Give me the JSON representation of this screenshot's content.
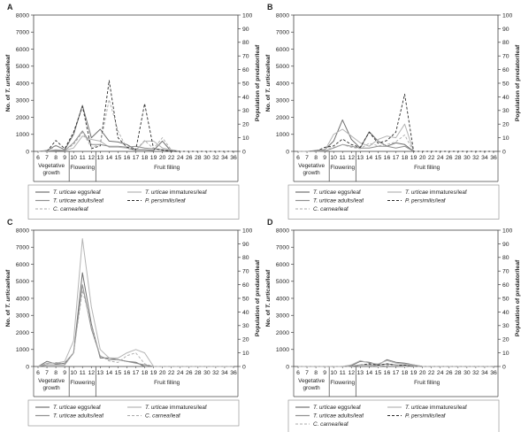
{
  "figure": {
    "left_axis_label_prefix": "No. of ",
    "left_axis_label_species": "T. urticae",
    "left_axis_label_suffix": "/leaf",
    "right_axis_label": "Population of predator/leaf",
    "stages": [
      "Vegetative growth",
      "Flowering",
      "Fruit filling"
    ],
    "stage_tick_groups": [
      [
        6,
        7,
        8,
        9
      ],
      [
        10,
        11,
        12
      ],
      [
        13,
        14,
        15,
        16,
        17,
        18,
        19,
        20,
        22,
        24,
        26,
        28,
        30,
        32,
        34,
        36
      ]
    ]
  },
  "legend_meta": [
    {
      "key": "eggs",
      "species": "T. urticae",
      "suffix": " eggs/leaf",
      "color": "#707070",
      "dash": "",
      "width": 1.0
    },
    {
      "key": "immatures",
      "species": "T. urticae",
      "suffix": " immatures/leaf",
      "color": "#b4b4b4",
      "dash": "",
      "width": 1.0
    },
    {
      "key": "adults",
      "species": "T. urticae",
      "suffix": " adults/leaf",
      "color": "#909090",
      "dash": "",
      "width": 1.0
    },
    {
      "key": "persimilis",
      "species": "P. persimilis",
      "suffix": "/leaf",
      "color": "#2a2a2a",
      "dash": "3,2",
      "width": 0.9
    },
    {
      "key": "carnea",
      "species": "C. carnea",
      "suffix": "/leaf",
      "color": "#aaaaaa",
      "dash": "3,2",
      "width": 0.9
    }
  ],
  "chart_data": [
    {
      "panel": "A",
      "type": "line",
      "x": [
        "6",
        "7",
        "8",
        "9",
        "10",
        "11",
        "12",
        "13",
        "14",
        "15",
        "16",
        "17",
        "18",
        "19",
        "20",
        "22",
        "24",
        "26",
        "28",
        "30",
        "32",
        "34",
        "36"
      ],
      "y_left_lim": [
        0,
        8000
      ],
      "y_left_ticks": [
        0,
        1000,
        2000,
        3000,
        4000,
        5000,
        6000,
        7000,
        8000
      ],
      "y_right_lim": [
        0,
        100
      ],
      "y_right_ticks": [
        0,
        10,
        20,
        30,
        40,
        50,
        60,
        70,
        80,
        90,
        100
      ],
      "legend": [
        "eggs",
        "immatures",
        "adults",
        "persimilis",
        "carnea"
      ],
      "series": [
        {
          "key": "eggs",
          "axis": "left",
          "values": [
            0,
            50,
            350,
            100,
            1000,
            2700,
            800,
            1300,
            600,
            550,
            400,
            100,
            100,
            50,
            600,
            0,
            0,
            0,
            0,
            0,
            0,
            0,
            0
          ]
        },
        {
          "key": "immatures",
          "axis": "left",
          "values": [
            0,
            20,
            100,
            50,
            200,
            900,
            700,
            600,
            250,
            250,
            200,
            50,
            600,
            600,
            200,
            100,
            0,
            0,
            0,
            0,
            0,
            0,
            0
          ]
        },
        {
          "key": "adults",
          "axis": "left",
          "values": [
            0,
            20,
            50,
            50,
            500,
            1200,
            400,
            400,
            300,
            300,
            250,
            300,
            200,
            150,
            100,
            50,
            0,
            0,
            0,
            0,
            0,
            0,
            0
          ]
        },
        {
          "key": "persimilis",
          "axis": "right",
          "values": [
            0,
            0,
            8,
            2,
            14,
            33,
            2,
            4,
            52,
            10,
            3,
            1,
            35,
            2,
            1,
            0,
            0,
            0,
            0,
            0,
            0,
            0,
            0
          ]
        },
        {
          "key": "carnea",
          "axis": "right",
          "values": [
            0,
            0,
            4,
            1,
            5,
            14,
            3,
            5,
            38,
            15,
            2,
            1,
            8,
            2,
            10,
            1,
            0,
            0,
            0,
            0,
            0,
            0,
            0
          ]
        }
      ]
    },
    {
      "panel": "B",
      "type": "line",
      "x": [
        "6",
        "7",
        "8",
        "9",
        "10",
        "11",
        "12",
        "13",
        "14",
        "15",
        "16",
        "17",
        "18",
        "19",
        "20",
        "22",
        "24",
        "26",
        "28",
        "30",
        "32",
        "34",
        "36"
      ],
      "y_left_lim": [
        0,
        8000
      ],
      "y_left_ticks": [
        0,
        1000,
        2000,
        3000,
        4000,
        5000,
        6000,
        7000,
        8000
      ],
      "y_right_lim": [
        0,
        100
      ],
      "y_right_ticks": [
        0,
        10,
        20,
        30,
        40,
        50,
        60,
        70,
        80,
        90,
        100
      ],
      "legend": [
        "eggs",
        "immatures",
        "adults",
        "persimilis",
        "carnea"
      ],
      "series": [
        {
          "key": "eggs",
          "axis": "left",
          "values": [
            0,
            0,
            50,
            100,
            600,
            1850,
            700,
            200,
            1150,
            600,
            300,
            500,
            400,
            0,
            0,
            0,
            0,
            0,
            0,
            0,
            0,
            0,
            0
          ]
        },
        {
          "key": "immatures",
          "axis": "left",
          "values": [
            0,
            0,
            0,
            50,
            1000,
            1300,
            900,
            500,
            300,
            700,
            900,
            800,
            1600,
            0,
            0,
            0,
            0,
            0,
            0,
            0,
            0,
            0,
            0
          ]
        },
        {
          "key": "adults",
          "axis": "left",
          "values": [
            0,
            0,
            0,
            20,
            200,
            400,
            300,
            200,
            200,
            300,
            300,
            200,
            300,
            0,
            0,
            0,
            0,
            0,
            0,
            0,
            0,
            0,
            0
          ]
        },
        {
          "key": "persimilis",
          "axis": "right",
          "values": [
            0,
            0,
            0,
            3,
            4,
            9,
            5,
            3,
            14,
            6,
            8,
            14,
            42,
            0,
            0,
            0,
            0,
            0,
            0,
            0,
            0,
            0,
            0
          ]
        },
        {
          "key": "carnea",
          "axis": "right",
          "values": [
            0,
            0,
            0,
            2,
            3,
            5,
            3,
            2,
            6,
            4,
            5,
            7,
            12,
            0,
            0,
            0,
            0,
            0,
            0,
            0,
            0,
            0,
            0
          ]
        }
      ]
    },
    {
      "panel": "C",
      "type": "line",
      "x": [
        "6",
        "7",
        "8",
        "9",
        "10",
        "11",
        "12",
        "13",
        "14",
        "15",
        "16",
        "17",
        "18",
        "19",
        "20",
        "22",
        "24",
        "26",
        "28",
        "30",
        "32",
        "34",
        "36"
      ],
      "y_left_lim": [
        0,
        8000
      ],
      "y_left_ticks": [
        0,
        1000,
        2000,
        3000,
        4000,
        5000,
        6000,
        7000,
        8000
      ],
      "y_right_lim": [
        0,
        100
      ],
      "y_right_ticks": [
        0,
        10,
        20,
        30,
        40,
        50,
        60,
        70,
        80,
        90,
        100
      ],
      "legend": [
        "eggs",
        "immatures",
        "adults",
        "carnea"
      ],
      "series": [
        {
          "key": "eggs",
          "axis": "left",
          "values": [
            0,
            300,
            150,
            200,
            800,
            5500,
            2500,
            500,
            500,
            400,
            300,
            250,
            0,
            0,
            0,
            0,
            0,
            0,
            0,
            0,
            0,
            0,
            0
          ]
        },
        {
          "key": "immatures",
          "axis": "left",
          "values": [
            0,
            200,
            200,
            300,
            1500,
            7500,
            3500,
            1000,
            500,
            500,
            800,
            1000,
            800,
            0,
            0,
            0,
            0,
            0,
            0,
            0,
            0,
            0,
            0
          ]
        },
        {
          "key": "adults",
          "axis": "left",
          "values": [
            0,
            100,
            100,
            100,
            800,
            4800,
            2200,
            600,
            400,
            400,
            300,
            200,
            100,
            0,
            0,
            0,
            0,
            0,
            0,
            0,
            0,
            0,
            0
          ]
        },
        {
          "key": "carnea",
          "axis": "right",
          "values": [
            0,
            2,
            3,
            2,
            10,
            56,
            30,
            8,
            4,
            3,
            8,
            10,
            2,
            0,
            0,
            0,
            0,
            0,
            0,
            0,
            0,
            0,
            0
          ]
        }
      ]
    },
    {
      "panel": "D",
      "type": "line",
      "x": [
        "6",
        "7",
        "8",
        "9",
        "10",
        "11",
        "12",
        "13",
        "14",
        "15",
        "16",
        "17",
        "18",
        "19",
        "20",
        "22",
        "24",
        "26",
        "28",
        "30",
        "32",
        "34",
        "36"
      ],
      "y_left_lim": [
        0,
        8000
      ],
      "y_left_ticks": [
        0,
        1000,
        2000,
        3000,
        4000,
        5000,
        6000,
        7000,
        8000
      ],
      "y_right_lim": [
        0,
        100
      ],
      "y_right_ticks": [
        0,
        10,
        20,
        30,
        40,
        50,
        60,
        70,
        80,
        90,
        100
      ],
      "legend": [
        "eggs",
        "immatures",
        "adults",
        "persimilis",
        "carnea"
      ],
      "series": [
        {
          "key": "eggs",
          "axis": "left",
          "values": [
            0,
            0,
            0,
            0,
            0,
            0,
            50,
            300,
            250,
            100,
            400,
            250,
            200,
            100,
            0,
            0,
            0,
            0,
            0,
            0,
            0,
            0,
            0
          ]
        },
        {
          "key": "immatures",
          "axis": "left",
          "values": [
            0,
            0,
            0,
            0,
            0,
            0,
            100,
            350,
            200,
            150,
            350,
            200,
            150,
            100,
            0,
            0,
            0,
            0,
            0,
            0,
            0,
            0,
            0
          ]
        },
        {
          "key": "adults",
          "axis": "left",
          "values": [
            0,
            0,
            0,
            0,
            0,
            0,
            20,
            100,
            100,
            80,
            150,
            100,
            80,
            50,
            0,
            0,
            0,
            0,
            0,
            0,
            0,
            0,
            0
          ]
        },
        {
          "key": "persimilis",
          "axis": "right",
          "values": [
            0,
            0,
            0,
            0,
            0,
            0,
            0,
            1,
            2,
            1,
            2,
            1,
            1,
            0,
            0,
            0,
            0,
            0,
            0,
            0,
            0,
            0,
            0
          ]
        },
        {
          "key": "carnea",
          "axis": "right",
          "values": [
            0,
            0,
            0,
            0,
            0,
            0,
            0,
            1,
            1,
            0,
            1,
            1,
            0,
            0,
            0,
            0,
            0,
            0,
            0,
            0,
            0,
            0,
            0
          ]
        }
      ]
    }
  ]
}
